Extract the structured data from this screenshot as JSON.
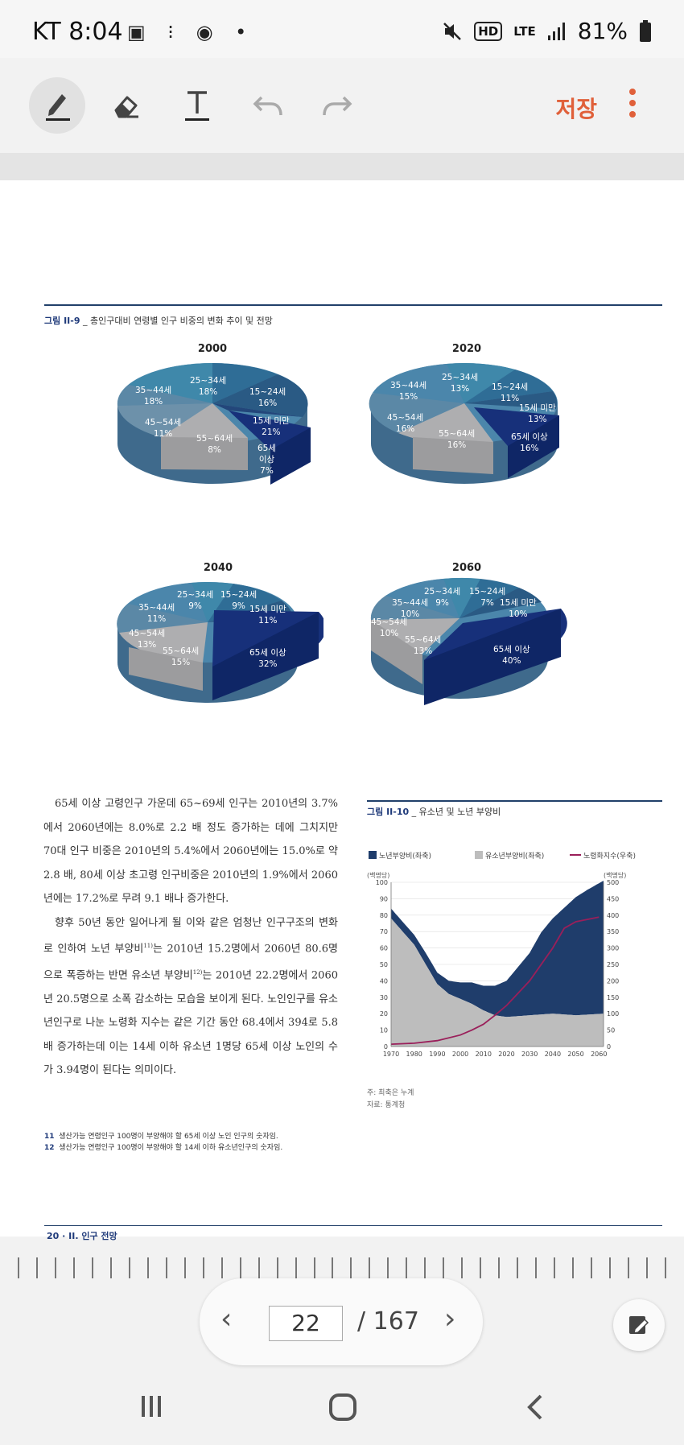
{
  "status": {
    "carrier_time": "KT 8:04",
    "icons_left": "▣ ⁝ ◉ •",
    "battery": "81%",
    "hd": "HD",
    "lte": "LTE"
  },
  "toolbar": {
    "save_label": "저장"
  },
  "page": {
    "fig1_title_num": "그림 II-9",
    "fig1_title_text": " _ 총인구대비 연령별 인구 비중의 변화 추이 및 전망",
    "pies": [
      {
        "year": "2000",
        "labels": [
          "25~34세\n18%",
          "15~24세\n16%",
          "15세 미만\n21%",
          "65세\n이상\n7%",
          "55~64세\n8%",
          "45~54세\n11%",
          "35~44세\n18%"
        ]
      },
      {
        "year": "2020",
        "labels": [
          "25~34세\n13%",
          "15~24세\n11%",
          "15세 미만\n13%",
          "65세 이상\n16%",
          "55~64세\n16%",
          "45~54세\n16%",
          "35~44세\n15%"
        ]
      },
      {
        "year": "2040",
        "labels": [
          "25~34세\n9%",
          "15~24세\n9%",
          "15세 미만\n11%",
          "65세 이상\n32%",
          "55~64세\n15%",
          "45~54세\n13%",
          "35~44세\n11%"
        ]
      },
      {
        "year": "2060",
        "labels": [
          "25~34세\n9%",
          "15~24세\n7%",
          "15세 미만\n10%",
          "65세 이상\n40%",
          "55~64세\n13%",
          "45~54세\n10%",
          "35~44세\n10%"
        ]
      }
    ],
    "paragraph1": "65세 이상 고령인구 가운데 65~69세 인구는 2010년의 3.7%에서 2060년에는 8.0%로 2.2 배 정도 증가하는 데에 그치지만 70대 인구 비중은 2010년의 5.4%에서 2060년에는 15.0%로 약 2.8 배, 80세 이상 초고령 인구비중은 2010년의 1.9%에서 2060년에는 17.2%로 무려 9.1 배나 증가한다.",
    "paragraph2a": "향후 50년 동안 일어나게 될 이와 같은 엄청난 인구구조의 변화로 인하여 노년 부양비",
    "sup11": "11)",
    "paragraph2b": "는 2010년 15.2명에서 2060년 80.6명으로 폭증하는 반면 유소년 부양비",
    "sup12": "12)",
    "paragraph2c": "는 2010년 22.2명에서 2060년 20.5명으로 소폭 감소하는 모습을 보이게 된다. 노인인구를 유소년인구로 나눈 노령화 지수는 같은 기간 동안 68.4에서 394로 5.8배 증가하는데 이는 14세 이하 유소년 1명당 65세 이상 노인의 수가 3.94명이 된다는 의미이다.",
    "fig2_title_num": "그림 II-10",
    "fig2_title_text": " _ 유소년 및 노년 부양비",
    "note1": "주: 최축은 누계",
    "note2": "자료: 통계청",
    "footnote11_num": "11",
    "footnote11": "생산가능 연령인구 100명이 부양해야 할 65세 이상 노인 인구의 숫자임.",
    "footnote12_num": "12",
    "footnote12": "생산가능 연령인구 100명이 부양해야 할 14세 이하 유소년인구의 숫자임.",
    "footer": "20 · II. 인구 전망"
  },
  "chart_data": {
    "type": "area",
    "title": "유소년 및 노년 부양비",
    "legend": [
      "노년부양비(좌축)",
      "유소년부양비(좌축)",
      "노령화지수(우축)"
    ],
    "ylabel_left": "(백명당)",
    "ylabel_right": "(백명당)",
    "x": [
      1970,
      1980,
      1990,
      2000,
      2010,
      2020,
      2030,
      2040,
      2050,
      2060
    ],
    "xlim": [
      1970,
      2062
    ],
    "ylim_left": [
      0,
      100
    ],
    "ylim_right": [
      0,
      500
    ],
    "yticks_left": [
      0,
      10,
      20,
      30,
      40,
      50,
      60,
      70,
      80,
      90,
      100
    ],
    "yticks_right": [
      0,
      50,
      100,
      150,
      200,
      250,
      300,
      350,
      400,
      450,
      500
    ],
    "series": [
      {
        "name": "유소년부양비(좌축)",
        "x": [
          1970,
          1975,
          1980,
          1985,
          1990,
          1995,
          2000,
          2005,
          2010,
          2015,
          2020,
          2030,
          2040,
          2050,
          2062
        ],
        "values": [
          78,
          70,
          62,
          50,
          38,
          32,
          29,
          26,
          22,
          19,
          18,
          19,
          20,
          19,
          20
        ],
        "color": "#bdbdbd"
      },
      {
        "name": "노년부양비(좌축)",
        "x": [
          1970,
          1975,
          1980,
          1985,
          1990,
          1995,
          2000,
          2005,
          2010,
          2015,
          2020,
          2025,
          2030,
          2035,
          2040,
          2045,
          2050,
          2055,
          2062
        ],
        "values": [
          6,
          6,
          6,
          7,
          7,
          8,
          10,
          13,
          15,
          18,
          22,
          30,
          38,
          50,
          58,
          65,
          72,
          76,
          81
        ],
        "color": "#1f3d6b"
      },
      {
        "name": "노령화지수(우축)",
        "x": [
          1970,
          1980,
          1990,
          2000,
          2005,
          2010,
          2015,
          2020,
          2030,
          2040,
          2045,
          2050,
          2060
        ],
        "values": [
          7,
          10,
          18,
          35,
          50,
          68,
          95,
          125,
          200,
          300,
          360,
          380,
          394
        ],
        "color": "#9a1f5a"
      }
    ]
  }
}
